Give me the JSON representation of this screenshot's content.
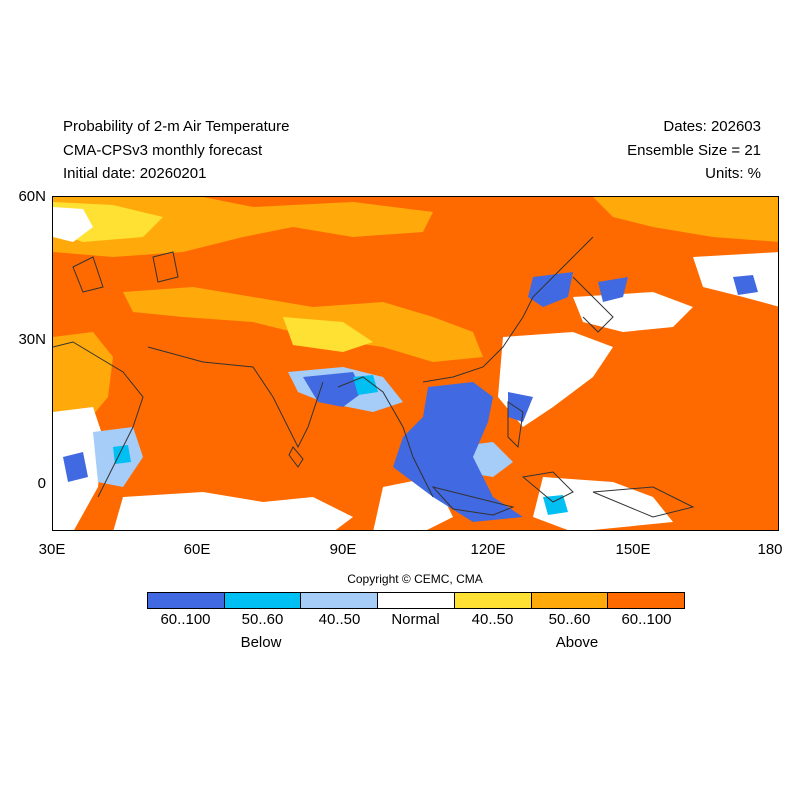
{
  "header": {
    "title": "Probability of 2-m Air Temperature",
    "model": "CMA-CPSv3 monthly forecast",
    "initial_date": "Initial date: 20260201",
    "dates": "Dates: 202603",
    "ensemble": "Ensemble Size = 21",
    "units": "Units: %"
  },
  "map": {
    "lat_ticks": [
      "60N",
      "30N",
      "0"
    ],
    "lon_ticks": [
      "30E",
      "60E",
      "90E",
      "120E",
      "150E",
      "180"
    ],
    "extent": {
      "lon": [
        30,
        180
      ],
      "lat": [
        -10,
        60
      ]
    },
    "background_category": "above-60-100",
    "colors": {
      "below_60_100": "#4169E1",
      "below_50_60": "#00BFF3",
      "below_40_50": "#A5CDF8",
      "normal": "#FFFFFF",
      "above_40_50": "#FFE133",
      "above_50_60": "#FFAA0A",
      "above_60_100": "#FF6A00",
      "coast": "#333333"
    }
  },
  "copyright": "Copyright © CEMC, CMA",
  "colorbar": {
    "bins": [
      {
        "label": "60..100",
        "color": "#4169E1"
      },
      {
        "label": "50..60",
        "color": "#00BFF3"
      },
      {
        "label": "40..50",
        "color": "#A5CDF8"
      },
      {
        "label": "Normal",
        "color": "#FFFFFF"
      },
      {
        "label": "40..50",
        "color": "#FFE133"
      },
      {
        "label": "50..60",
        "color": "#FFAA0A"
      },
      {
        "label": "60..100",
        "color": "#FF6A00"
      }
    ],
    "group_below": "Below",
    "group_above": "Above"
  }
}
